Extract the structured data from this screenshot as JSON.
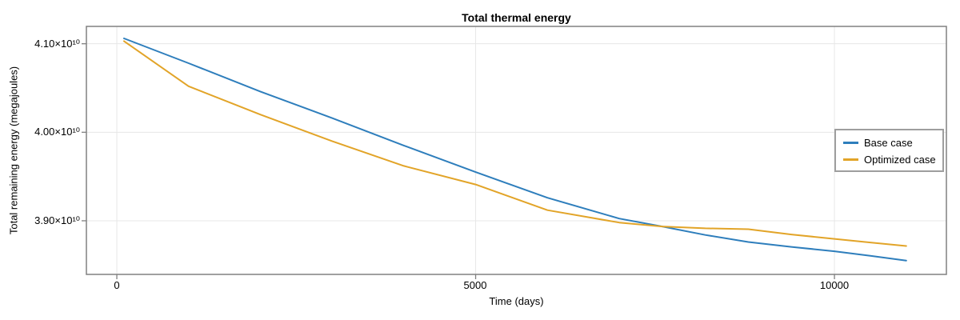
{
  "chart_data": {
    "type": "line",
    "title": "Total thermal energy",
    "xlabel": "Time (days)",
    "ylabel": "Total remaining energy (megajoules)",
    "y_unit": "megajoules",
    "y_value_scale": 10000000000,
    "grid": true,
    "legend_position": "inside-right",
    "xlim": [
      -424,
      11560
    ],
    "ylim_e10": [
      3.8394,
      4.1196
    ],
    "x_ticks": [
      {
        "value": 0,
        "label": "0"
      },
      {
        "value": 5000,
        "label": "5000"
      },
      {
        "value": 10000,
        "label": "10000"
      }
    ],
    "y_ticks": [
      {
        "value_e10": 4.1,
        "label": "4.10×10¹⁰"
      },
      {
        "value_e10": 4.0,
        "label": "4.00×10¹⁰"
      },
      {
        "value_e10": 3.9,
        "label": "3.90×10¹⁰"
      }
    ],
    "x_days": [
      100,
      1000,
      2000,
      3000,
      4000,
      5000,
      6000,
      7000,
      7600,
      8200,
      8800,
      9400,
      10000,
      10500,
      11000
    ],
    "series": [
      {
        "name": "Base case",
        "color": "#2e7ebc",
        "values_e10": [
          4.106,
          4.078,
          4.046,
          4.016,
          3.985,
          3.955,
          3.926,
          3.9025,
          3.8935,
          3.884,
          3.876,
          3.8705,
          3.8655,
          3.8605,
          3.855
        ]
      },
      {
        "name": "Optimized case",
        "color": "#e2a428",
        "values_e10": [
          4.103,
          4.052,
          4.02,
          3.99,
          3.962,
          3.941,
          3.912,
          3.898,
          3.8935,
          3.8915,
          3.8905,
          3.8845,
          3.8795,
          3.8755,
          3.8715
        ]
      }
    ]
  },
  "legend": {
    "items": [
      {
        "label": "Base case",
        "color": "#2e7ebc"
      },
      {
        "label": "Optimized case",
        "color": "#e2a428"
      }
    ]
  },
  "colors": {
    "axis": "#808080",
    "tick": "#808080",
    "grid": "#e7e7e7",
    "text": "#000000",
    "background": "#ffffff",
    "legend_border": "#9e9e9e"
  }
}
